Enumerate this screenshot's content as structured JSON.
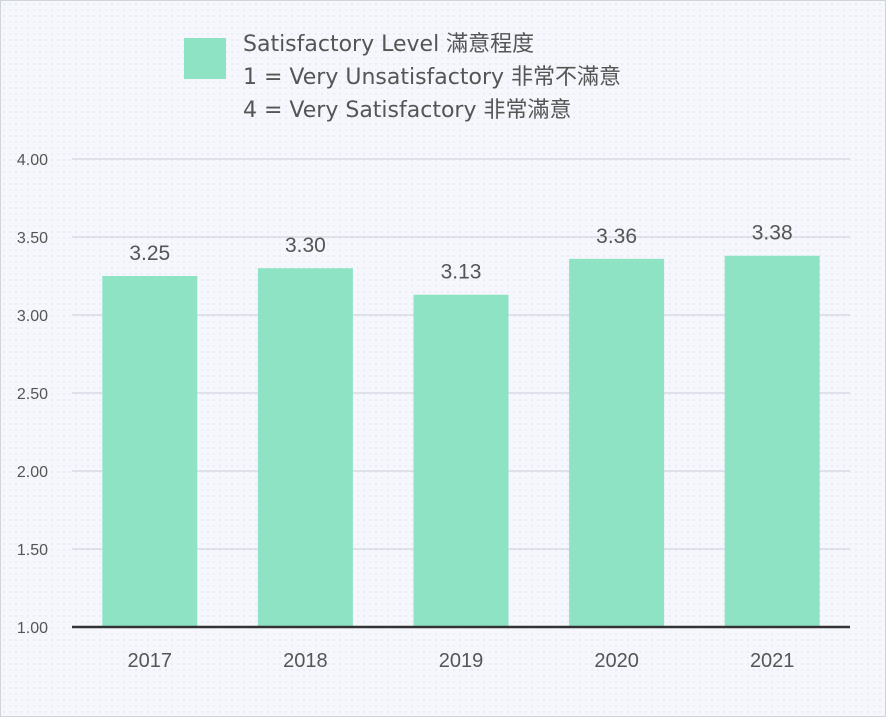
{
  "chart_data": {
    "type": "bar",
    "categories": [
      "2017",
      "2018",
      "2019",
      "2020",
      "2021"
    ],
    "series": [
      {
        "values": [
          3.25,
          3.3,
          3.13,
          3.36,
          3.38
        ],
        "color": "#8fe3c5"
      }
    ],
    "data_labels": [
      "3.25",
      "3.30",
      "3.13",
      "3.36",
      "3.38"
    ],
    "legend": {
      "position": "top",
      "lines": [
        "Satisfactory Level 滿意程度",
        "1 = Very Unsatisfactory 非常不滿意",
        "4 = Very Satisfactory 非常滿意"
      ]
    },
    "y_ticks": [
      "1.00",
      "1.50",
      "2.00",
      "2.50",
      "3.00",
      "3.50",
      "4.00"
    ],
    "ylim": [
      1.0,
      4.0
    ],
    "grid": true,
    "colors": {
      "bar": "#8fe3c5",
      "gridline": "#d2d6de",
      "axis": "#333333",
      "text": "#555555"
    }
  }
}
